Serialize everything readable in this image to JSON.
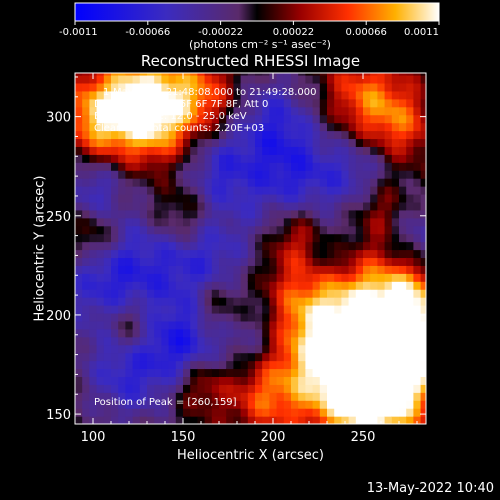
{
  "chart_data": {
    "type": "heatmap",
    "title": "Reconstructed RHESSI Image",
    "xlabel": "Heliocentric X (arcsec)",
    "ylabel": "Heliocentric Y (arcsec)",
    "xlim": [
      90,
      285
    ],
    "ylim": [
      145,
      322
    ],
    "xticks": [
      "100",
      "150",
      "200",
      "250"
    ],
    "yticks": [
      "150",
      "200",
      "250",
      "300"
    ],
    "colorbar": {
      "ticks": [
        "-0.0011",
        "-0.00066",
        "-0.00022",
        "0.00022",
        "0.00066",
        "0.0011"
      ],
      "range": [
        -0.0011,
        0.0011
      ],
      "label": "(photons cm⁻² s⁻¹ asec⁻²)"
    },
    "annotations": [
      "1-May-2013 21:48:08.000 to 21:49:28.000",
      "Detectors: 3F 4F 5F 6F 7F 8F, Att 0",
      "Energy Range: 12.0 - 25.0 keV",
      "Clean",
      "Total counts: 2.20E+03"
    ],
    "peak_label": "Position of Peak = [260,159]",
    "peak": [
      260,
      159
    ],
    "grid": false
  },
  "timestamp": "13-May-2022 10:40"
}
